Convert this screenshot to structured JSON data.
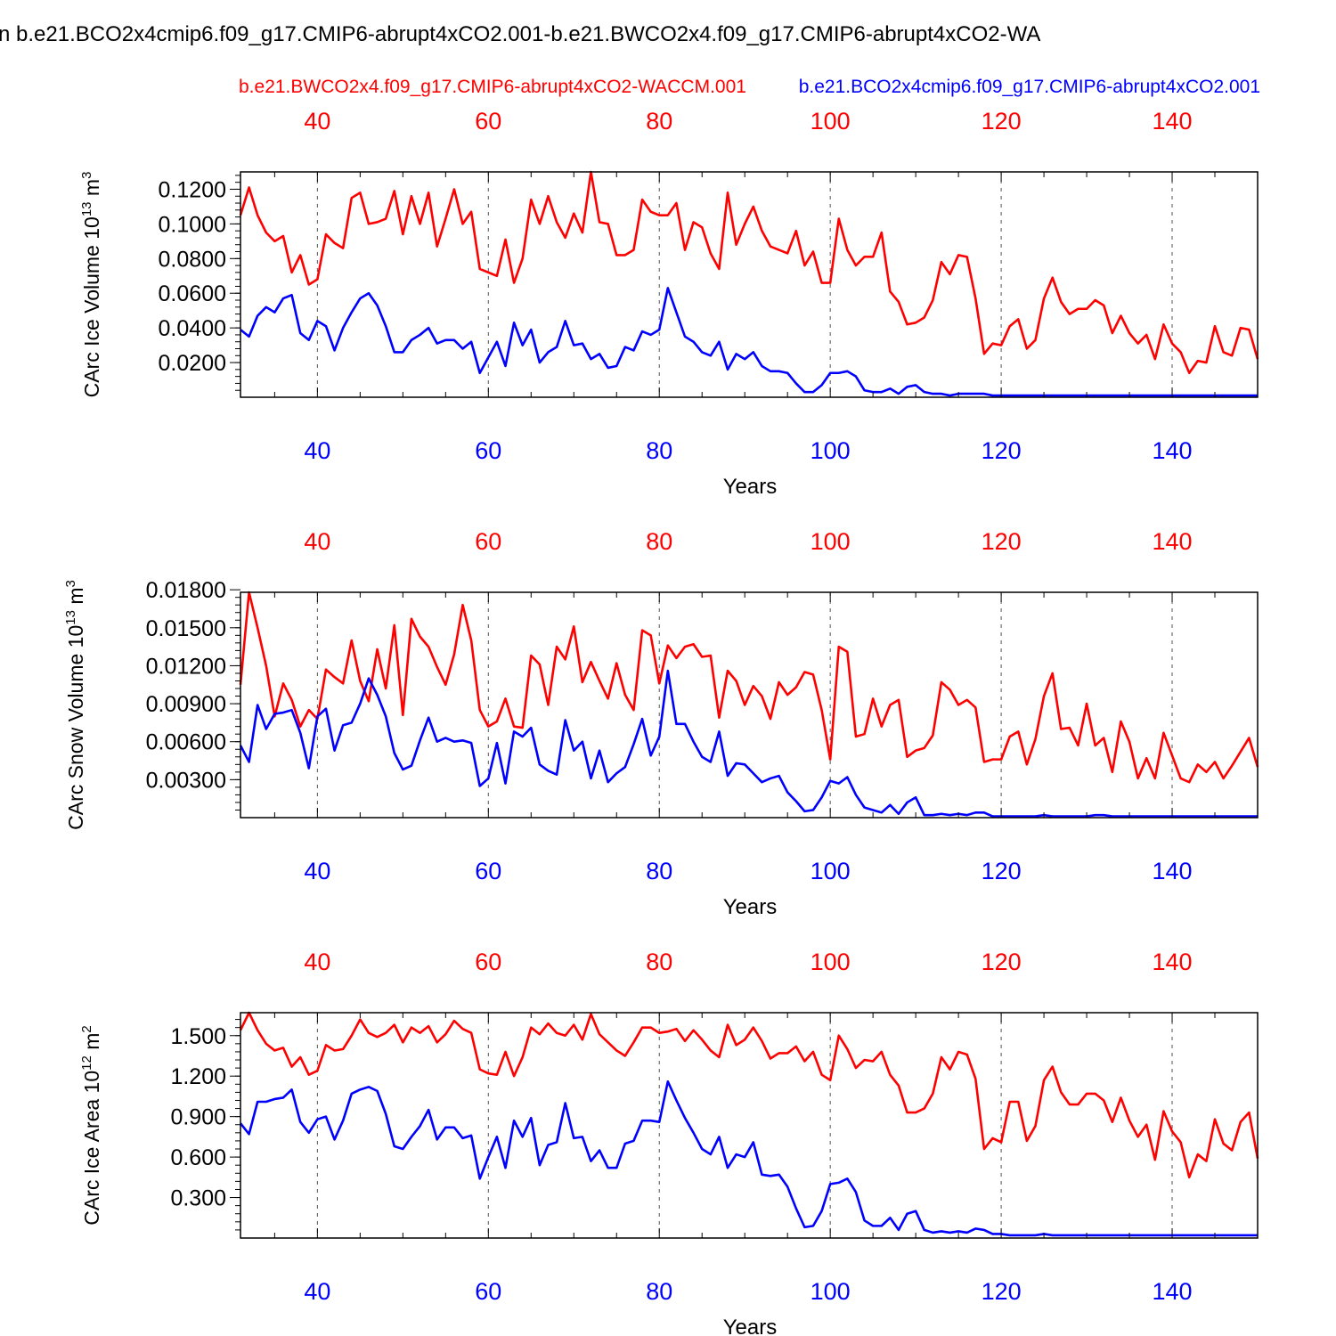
{
  "title": "n b.e21.BCO2x4cmip6.f09_g17.CMIP6-abrupt4xCO2.001-b.e21.BWCO2x4.f09_g17.CMIP6-abrupt4xCO2-WA",
  "colors": {
    "red": "#ff0000",
    "blue": "#0000ff",
    "black": "#000000",
    "grid": "#555555"
  },
  "legend": {
    "red": "b.e21.BWCO2x4.f09_g17.CMIP6-abrupt4xCO2-WACCM.001",
    "blue": "b.e21.BCO2x4cmip6.f09_g17.CMIP6-abrupt4xCO2.001"
  },
  "chart_data": [
    {
      "type": "line",
      "ylabel_prefix": "CArc Ice Volume 10",
      "ylabel_exp": "13",
      "ylabel_unit": " m",
      "ylabel_unit_exp": "3",
      "xlabel": "Years",
      "xlim": [
        31,
        150
      ],
      "ylim": [
        0.0,
        0.13
      ],
      "ytick_values": [
        0.02,
        0.04,
        0.06,
        0.08,
        0.1,
        0.12
      ],
      "yticks": [
        "0.0200",
        "0.0400",
        "0.0600",
        "0.0800",
        "0.1000",
        "0.1200"
      ],
      "xticks": [
        40,
        60,
        80,
        100,
        120,
        140
      ],
      "xtick_labels": [
        "40",
        "60",
        "80",
        "100",
        "120",
        "140"
      ],
      "x_start": 31,
      "series": [
        {
          "name": "b.e21.BWCO2x4.f09_g17.CMIP6-abrupt4xCO2-WACCM.001",
          "color": "red",
          "values": [
            0.105,
            0.121,
            0.105,
            0.095,
            0.09,
            0.093,
            0.072,
            0.082,
            0.065,
            0.068,
            0.094,
            0.089,
            0.086,
            0.115,
            0.118,
            0.1,
            0.101,
            0.103,
            0.119,
            0.094,
            0.116,
            0.1,
            0.118,
            0.087,
            0.103,
            0.12,
            0.1,
            0.107,
            0.074,
            0.072,
            0.07,
            0.091,
            0.066,
            0.08,
            0.114,
            0.1,
            0.116,
            0.101,
            0.092,
            0.106,
            0.095,
            0.13,
            0.101,
            0.1,
            0.082,
            0.082,
            0.085,
            0.114,
            0.107,
            0.105,
            0.105,
            0.112,
            0.085,
            0.101,
            0.098,
            0.083,
            0.074,
            0.118,
            0.088,
            0.1,
            0.11,
            0.096,
            0.087,
            0.085,
            0.083,
            0.096,
            0.076,
            0.084,
            0.066,
            0.066,
            0.103,
            0.085,
            0.076,
            0.081,
            0.081,
            0.095,
            0.061,
            0.055,
            0.042,
            0.043,
            0.046,
            0.056,
            0.078,
            0.071,
            0.082,
            0.081,
            0.057,
            0.025,
            0.031,
            0.03,
            0.041,
            0.045,
            0.028,
            0.033,
            0.057,
            0.069,
            0.055,
            0.048,
            0.051,
            0.051,
            0.056,
            0.053,
            0.037,
            0.047,
            0.037,
            0.031,
            0.036,
            0.022,
            0.042,
            0.031,
            0.026,
            0.014,
            0.021,
            0.02,
            0.041,
            0.026,
            0.024,
            0.04,
            0.039,
            0.022
          ]
        },
        {
          "name": "b.e21.BCO2x4cmip6.f09_g17.CMIP6-abrupt4xCO2.001",
          "color": "blue",
          "values": [
            0.039,
            0.035,
            0.047,
            0.052,
            0.049,
            0.057,
            0.059,
            0.037,
            0.033,
            0.044,
            0.041,
            0.027,
            0.04,
            0.049,
            0.057,
            0.06,
            0.053,
            0.041,
            0.026,
            0.026,
            0.033,
            0.036,
            0.04,
            0.031,
            0.033,
            0.033,
            0.028,
            0.032,
            0.014,
            0.023,
            0.032,
            0.018,
            0.043,
            0.03,
            0.039,
            0.02,
            0.026,
            0.029,
            0.044,
            0.03,
            0.031,
            0.022,
            0.025,
            0.017,
            0.018,
            0.029,
            0.027,
            0.038,
            0.036,
            0.039,
            0.063,
            0.049,
            0.035,
            0.032,
            0.026,
            0.024,
            0.032,
            0.016,
            0.025,
            0.022,
            0.026,
            0.018,
            0.015,
            0.015,
            0.014,
            0.008,
            0.003,
            0.003,
            0.007,
            0.014,
            0.014,
            0.015,
            0.012,
            0.004,
            0.003,
            0.003,
            0.005,
            0.002,
            0.006,
            0.007,
            0.003,
            0.002,
            0.002,
            0.001,
            0.002,
            0.002,
            0.002,
            0.002,
            0.001,
            0.001,
            0.001,
            0.001,
            0.001,
            0.001,
            0.001,
            0.001,
            0.001,
            0.001,
            0.001,
            0.001,
            0.001,
            0.001,
            0.001,
            0.001,
            0.001,
            0.001,
            0.001,
            0.001,
            0.001,
            0.001,
            0.001,
            0.001,
            0.001,
            0.001,
            0.001,
            0.001,
            0.001,
            0.001,
            0.001,
            0.001
          ]
        }
      ]
    },
    {
      "type": "line",
      "ylabel_prefix": "CArc Snow Volume 10",
      "ylabel_exp": "13",
      "ylabel_unit": " m",
      "ylabel_unit_exp": "3",
      "xlabel": "Years",
      "xlim": [
        31,
        150
      ],
      "ylim": [
        0.0,
        0.0178
      ],
      "ytick_values": [
        0.003,
        0.006,
        0.009,
        0.012,
        0.015,
        0.018
      ],
      "yticks": [
        "0.00300",
        "0.00600",
        "0.00900",
        "0.01200",
        "0.01500",
        "0.01800"
      ],
      "xticks": [
        40,
        60,
        80,
        100,
        120,
        140
      ],
      "xtick_labels": [
        "40",
        "60",
        "80",
        "100",
        "120",
        "140"
      ],
      "x_start": 31,
      "series": [
        {
          "name": "b.e21.BWCO2x4.f09_g17.CMIP6-abrupt4xCO2-WACCM.001",
          "color": "red",
          "values": [
            0.0105,
            0.0178,
            0.015,
            0.012,
            0.008,
            0.0106,
            0.0093,
            0.0072,
            0.0085,
            0.0078,
            0.0117,
            0.0111,
            0.0106,
            0.014,
            0.0108,
            0.0092,
            0.0133,
            0.0102,
            0.0152,
            0.0081,
            0.0157,
            0.0143,
            0.0135,
            0.0119,
            0.0105,
            0.0129,
            0.0168,
            0.014,
            0.0085,
            0.0072,
            0.0076,
            0.0094,
            0.0072,
            0.0071,
            0.0128,
            0.0121,
            0.0089,
            0.0135,
            0.0125,
            0.0151,
            0.0107,
            0.0123,
            0.0108,
            0.0094,
            0.0122,
            0.0097,
            0.0085,
            0.0148,
            0.0144,
            0.0106,
            0.0136,
            0.0126,
            0.0135,
            0.0137,
            0.0127,
            0.0128,
            0.0079,
            0.0116,
            0.0108,
            0.0089,
            0.0104,
            0.0096,
            0.0078,
            0.0107,
            0.0097,
            0.0103,
            0.0115,
            0.0113,
            0.0085,
            0.0046,
            0.0135,
            0.0131,
            0.0064,
            0.0066,
            0.0094,
            0.0072,
            0.0089,
            0.0093,
            0.0048,
            0.0053,
            0.0055,
            0.0065,
            0.0107,
            0.0101,
            0.0089,
            0.0093,
            0.0087,
            0.0044,
            0.0046,
            0.0046,
            0.0064,
            0.0068,
            0.0042,
            0.0062,
            0.0096,
            0.0114,
            0.007,
            0.0071,
            0.0057,
            0.009,
            0.0057,
            0.0063,
            0.0036,
            0.0076,
            0.006,
            0.0031,
            0.0047,
            0.0031,
            0.0067,
            0.0049,
            0.0031,
            0.0028,
            0.0042,
            0.0036,
            0.0044,
            0.0031,
            0.0041,
            0.0052,
            0.0063,
            0.004
          ]
        },
        {
          "name": "b.e21.BCO2x4cmip6.f09_g17.CMIP6-abrupt4xCO2.001",
          "color": "blue",
          "values": [
            0.0057,
            0.0044,
            0.0089,
            0.007,
            0.0082,
            0.0083,
            0.0085,
            0.0067,
            0.0039,
            0.008,
            0.0086,
            0.0053,
            0.0073,
            0.0075,
            0.009,
            0.011,
            0.0097,
            0.008,
            0.0051,
            0.0038,
            0.0041,
            0.0061,
            0.0079,
            0.006,
            0.0063,
            0.006,
            0.0061,
            0.0059,
            0.0025,
            0.0031,
            0.0059,
            0.0027,
            0.0068,
            0.0064,
            0.0071,
            0.0042,
            0.0037,
            0.0034,
            0.0077,
            0.0053,
            0.006,
            0.0031,
            0.0053,
            0.0028,
            0.0035,
            0.004,
            0.0058,
            0.0078,
            0.0049,
            0.0064,
            0.0116,
            0.0074,
            0.0074,
            0.006,
            0.0048,
            0.0044,
            0.0068,
            0.0033,
            0.0043,
            0.0042,
            0.0035,
            0.0028,
            0.0031,
            0.0033,
            0.002,
            0.0013,
            0.0005,
            0.0006,
            0.0016,
            0.0029,
            0.0027,
            0.0032,
            0.0018,
            0.0008,
            0.0006,
            0.0004,
            0.001,
            0.0003,
            0.0012,
            0.0016,
            0.0002,
            0.0002,
            0.0003,
            0.0002,
            0.0003,
            0.0002,
            0.0004,
            0.0004,
            0.0001,
            0.0001,
            0.0001,
            0.0001,
            0.0001,
            0.0001,
            0.0002,
            0.0001,
            0.0001,
            0.0001,
            0.0001,
            0.0001,
            0.0002,
            0.0002,
            0.0001,
            0.0001,
            0.0001,
            0.0001,
            0.0001,
            0.0001,
            0.0001,
            0.0001,
            0.0001,
            0.0001,
            0.0001,
            0.0001,
            0.0001,
            0.0001,
            0.0001,
            0.0001,
            0.0001,
            0.0001
          ]
        }
      ]
    },
    {
      "type": "line",
      "ylabel_prefix": "CArc Ice Area 10",
      "ylabel_exp": "12",
      "ylabel_unit": " m",
      "ylabel_unit_exp": "2",
      "xlabel": "Years",
      "xlim": [
        31,
        150
      ],
      "ylim": [
        0.0,
        1.67
      ],
      "ytick_values": [
        0.3,
        0.6,
        0.9,
        1.2,
        1.5
      ],
      "yticks": [
        "0.300",
        "0.600",
        "0.900",
        "1.200",
        "1.500"
      ],
      "xticks": [
        40,
        60,
        80,
        100,
        120,
        140
      ],
      "xtick_labels": [
        "40",
        "60",
        "80",
        "100",
        "120",
        "140"
      ],
      "x_start": 31,
      "series": [
        {
          "name": "b.e21.BWCO2x4.f09_g17.CMIP6-abrupt4xCO2-WACCM.001",
          "color": "red",
          "values": [
            1.54,
            1.67,
            1.54,
            1.44,
            1.39,
            1.41,
            1.27,
            1.34,
            1.21,
            1.24,
            1.43,
            1.39,
            1.4,
            1.5,
            1.62,
            1.52,
            1.49,
            1.52,
            1.58,
            1.45,
            1.56,
            1.52,
            1.57,
            1.45,
            1.51,
            1.61,
            1.55,
            1.52,
            1.25,
            1.22,
            1.21,
            1.38,
            1.2,
            1.34,
            1.56,
            1.51,
            1.59,
            1.52,
            1.5,
            1.58,
            1.47,
            1.66,
            1.51,
            1.45,
            1.39,
            1.35,
            1.45,
            1.56,
            1.56,
            1.52,
            1.53,
            1.55,
            1.46,
            1.54,
            1.47,
            1.39,
            1.34,
            1.58,
            1.43,
            1.47,
            1.56,
            1.46,
            1.33,
            1.37,
            1.37,
            1.42,
            1.31,
            1.38,
            1.21,
            1.17,
            1.5,
            1.4,
            1.26,
            1.32,
            1.31,
            1.38,
            1.21,
            1.13,
            0.93,
            0.93,
            0.96,
            1.07,
            1.34,
            1.25,
            1.38,
            1.36,
            1.18,
            0.66,
            0.74,
            0.71,
            1.01,
            1.01,
            0.72,
            0.83,
            1.17,
            1.27,
            1.08,
            0.99,
            0.99,
            1.07,
            1.07,
            1.02,
            0.86,
            1.04,
            0.87,
            0.75,
            0.84,
            0.58,
            0.94,
            0.79,
            0.71,
            0.45,
            0.62,
            0.57,
            0.88,
            0.7,
            0.65,
            0.86,
            0.93,
            0.59
          ]
        },
        {
          "name": "b.e21.BCO2x4cmip6.f09_g17.CMIP6-abrupt4xCO2.001",
          "color": "blue",
          "values": [
            0.85,
            0.77,
            1.01,
            1.01,
            1.03,
            1.04,
            1.1,
            0.86,
            0.78,
            0.88,
            0.9,
            0.73,
            0.87,
            1.07,
            1.1,
            1.12,
            1.09,
            0.92,
            0.68,
            0.66,
            0.75,
            0.83,
            0.95,
            0.73,
            0.82,
            0.82,
            0.74,
            0.76,
            0.44,
            0.6,
            0.75,
            0.52,
            0.87,
            0.75,
            0.89,
            0.54,
            0.69,
            0.71,
            1.0,
            0.74,
            0.75,
            0.57,
            0.65,
            0.52,
            0.52,
            0.7,
            0.72,
            0.87,
            0.87,
            0.86,
            1.16,
            1.02,
            0.89,
            0.78,
            0.66,
            0.62,
            0.75,
            0.52,
            0.62,
            0.6,
            0.71,
            0.47,
            0.46,
            0.47,
            0.38,
            0.22,
            0.08,
            0.09,
            0.2,
            0.4,
            0.41,
            0.44,
            0.34,
            0.13,
            0.09,
            0.09,
            0.15,
            0.06,
            0.18,
            0.2,
            0.06,
            0.04,
            0.05,
            0.04,
            0.05,
            0.04,
            0.07,
            0.06,
            0.03,
            0.03,
            0.02,
            0.02,
            0.02,
            0.02,
            0.03,
            0.02,
            0.02,
            0.02,
            0.02,
            0.02,
            0.02,
            0.02,
            0.02,
            0.02,
            0.02,
            0.02,
            0.02,
            0.02,
            0.02,
            0.02,
            0.02,
            0.02,
            0.02,
            0.02,
            0.02,
            0.02,
            0.02,
            0.02,
            0.02,
            0.02
          ]
        }
      ]
    }
  ]
}
